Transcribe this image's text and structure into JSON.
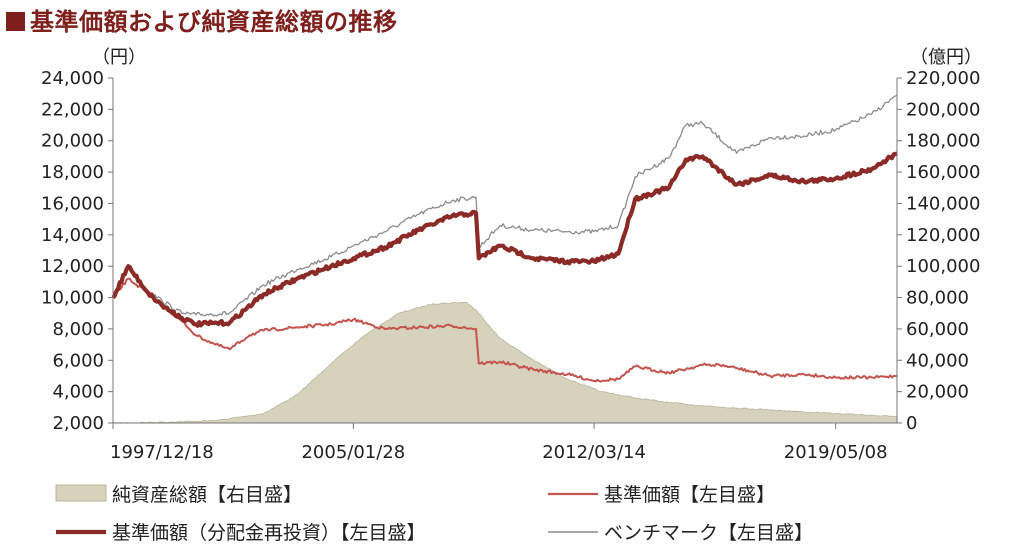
{
  "title": "基準価額および純資産総額の推移",
  "chart_data": {
    "type": "line",
    "left_unit": "（円）",
    "right_unit": "（億円）",
    "left_axis": {
      "min": 2000,
      "max": 24000,
      "step": 2000,
      "ticks": [
        "2,000",
        "4,000",
        "6,000",
        "8,000",
        "10,000",
        "12,000",
        "14,000",
        "16,000",
        "18,000",
        "20,000",
        "22,000",
        "24,000"
      ]
    },
    "right_axis": {
      "min": 0,
      "max": 220000,
      "step": 20000,
      "ticks": [
        "0",
        "20,000",
        "40,000",
        "60,000",
        "80,000",
        "100,000",
        "120,000",
        "140,000",
        "160,000",
        "180,000",
        "200,000",
        "220,000"
      ]
    },
    "x_range": [
      "1997/12/18",
      "2021/03/01"
    ],
    "x_tick_labels": [
      "1997/12/18",
      "2005/01/28",
      "2012/03/14",
      "2019/05/08"
    ],
    "grid": false,
    "legend_position": "bottom",
    "colors": {
      "net_assets": "#d6d2bc",
      "nav": "#c4544e",
      "nav_reinvested": "#8b2a26",
      "benchmark": "#8c8c8c"
    },
    "series": [
      {
        "name": "純資産総額【右目盛】",
        "type": "area",
        "axis": "right",
        "x": [
          "1997/12/18",
          "1999/06/01",
          "2001/01/01",
          "2002/06/01",
          "2003/06/01",
          "2004/06/01",
          "2005/06/01",
          "2006/06/01",
          "2007/06/01",
          "2008/06/01",
          "2008/09/15",
          "2009/06/01",
          "2010/06/01",
          "2011/06/01",
          "2012/06/01",
          "2013/06/01",
          "2014/06/01",
          "2015/06/01",
          "2016/06/01",
          "2017/06/01",
          "2018/06/01",
          "2019/06/01",
          "2020/06/01",
          "2021/03/01"
        ],
        "values": [
          0,
          500,
          1500,
          6000,
          18000,
          38000,
          56000,
          70000,
          76000,
          77000,
          72000,
          54000,
          40000,
          28000,
          20000,
          16000,
          13000,
          11000,
          9500,
          8500,
          7000,
          6000,
          5000,
          4000
        ]
      },
      {
        "name": "基準価額【左目盛】",
        "axis": "left",
        "x": [
          "1997/12/18",
          "1998/06/01",
          "1999/01/01",
          "1999/06/01",
          "2000/01/01",
          "2000/06/01",
          "2001/01/01",
          "2001/06/01",
          "2002/01/01",
          "2002/06/01",
          "2003/06/01",
          "2004/06/01",
          "2005/01/28",
          "2006/01/01",
          "2007/01/01",
          "2008/01/01",
          "2008/09/15",
          "2008/10/15",
          "2009/06/01",
          "2010/06/01",
          "2011/06/01",
          "2012/03/14",
          "2012/12/01",
          "2013/06/01",
          "2014/06/01",
          "2015/06/01",
          "2015/12/01",
          "2016/06/01",
          "2017/06/01",
          "2018/06/01",
          "2019/05/08",
          "2020/06/01",
          "2021/03/01"
        ],
        "values": [
          10000,
          11200,
          10300,
          9500,
          8500,
          7600,
          7000,
          6700,
          7600,
          7900,
          8100,
          8300,
          8600,
          8000,
          8100,
          8200,
          8000,
          5800,
          5900,
          5400,
          5100,
          4700,
          4800,
          5600,
          5200,
          5700,
          5700,
          5500,
          5000,
          5100,
          4900,
          4900,
          5000
        ]
      },
      {
        "name": "基準価額（分配金再投資）【左目盛】",
        "axis": "left",
        "x": [
          "1997/12/18",
          "1998/06/01",
          "1999/01/01",
          "1999/06/01",
          "2000/01/01",
          "2000/06/01",
          "2001/06/01",
          "2002/06/01",
          "2003/06/01",
          "2004/06/01",
          "2005/01/28",
          "2006/01/01",
          "2007/01/01",
          "2008/01/01",
          "2008/09/15",
          "2008/10/15",
          "2009/06/01",
          "2010/06/01",
          "2011/06/01",
          "2012/03/14",
          "2012/12/01",
          "2013/06/01",
          "2014/06/01",
          "2014/12/01",
          "2015/06/01",
          "2016/06/01",
          "2017/06/01",
          "2018/06/01",
          "2019/05/08",
          "2020/06/01",
          "2021/03/01"
        ],
        "values": [
          10000,
          12000,
          10300,
          9500,
          8700,
          8300,
          8400,
          10200,
          11200,
          12000,
          12500,
          13200,
          14300,
          15200,
          15400,
          12500,
          13300,
          12500,
          12300,
          12300,
          12800,
          16300,
          17000,
          18800,
          19000,
          17200,
          17800,
          17400,
          17600,
          18200,
          19200
        ]
      },
      {
        "name": "ベンチマーク【左目盛】",
        "axis": "left",
        "x": [
          "1997/12/18",
          "1998/06/01",
          "1999/01/01",
          "1999/06/01",
          "2000/01/01",
          "2000/06/01",
          "2001/06/01",
          "2002/06/01",
          "2003/06/01",
          "2004/06/01",
          "2005/01/28",
          "2006/01/01",
          "2007/01/01",
          "2008/01/01",
          "2008/09/15",
          "2008/10/15",
          "2009/06/01",
          "2010/06/01",
          "2011/06/01",
          "2012/03/14",
          "2012/12/01",
          "2013/06/01",
          "2014/06/01",
          "2014/12/01",
          "2015/06/01",
          "2016/06/01",
          "2017/06/01",
          "2018/06/01",
          "2019/05/08",
          "2020/06/01",
          "2021/03/01"
        ],
        "values": [
          10000,
          12000,
          10400,
          9800,
          9000,
          8900,
          9000,
          10800,
          11800,
          12600,
          13300,
          14200,
          15300,
          16200,
          16400,
          13200,
          14600,
          14300,
          14200,
          14200,
          14600,
          17700,
          18900,
          21000,
          21100,
          19200,
          20200,
          20300,
          20700,
          21700,
          22900
        ]
      }
    ]
  }
}
